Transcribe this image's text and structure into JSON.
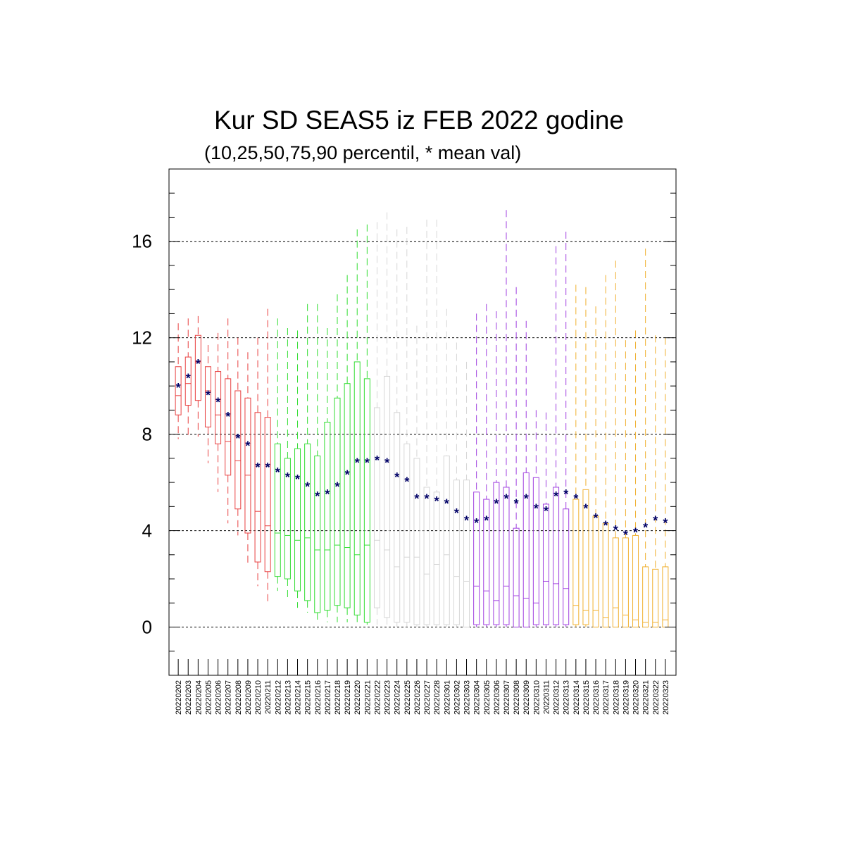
{
  "chart_data": {
    "type": "box",
    "title": "Kur SD SEAS5 iz FEB 2022 godine",
    "subtitle": "(10,25,50,75,90 percentil, * mean val)",
    "xlabel": "",
    "ylabel": "",
    "ylim": [
      -2,
      19
    ],
    "yticks": [
      0,
      4,
      8,
      12,
      16
    ],
    "grid": "horizontal dashed at major y ticks",
    "mean_marker": "*",
    "month_colors": {
      "202202": "#e84040",
      "202203a": "#33dd33",
      "202203b": "#d6d6d6",
      "202204": "#a040e0",
      "202205": "#f0b030"
    },
    "mean_color": "#000066",
    "categories": [
      "20220202",
      "20220203",
      "20220204",
      "20220205",
      "20220206",
      "20220207",
      "20220208",
      "20220209",
      "20220210",
      "20220211",
      "20220212",
      "20220213",
      "20220214",
      "20220215",
      "20220216",
      "20220217",
      "20220218",
      "20220219",
      "20220220",
      "20220221",
      "20220222",
      "20220223",
      "20220224",
      "20220225",
      "20220226",
      "20220227",
      "20220228",
      "20220301",
      "20220302",
      "20220303",
      "20220304",
      "20220305",
      "20220306",
      "20220307",
      "20220308",
      "20220309",
      "20220310",
      "20220311",
      "20220312",
      "20220313",
      "20220314",
      "20220315",
      "20220316",
      "20220317",
      "20220318",
      "20220319",
      "20220320",
      "20220321",
      "20220322",
      "20220323"
    ],
    "color_group": [
      "red",
      "red",
      "red",
      "red",
      "red",
      "red",
      "red",
      "red",
      "red",
      "red",
      "green",
      "green",
      "green",
      "green",
      "green",
      "green",
      "green",
      "green",
      "green",
      "green",
      "gray",
      "gray",
      "gray",
      "gray",
      "gray",
      "gray",
      "gray",
      "gray",
      "gray",
      "gray",
      "purple",
      "purple",
      "purple",
      "purple",
      "purple",
      "purple",
      "purple",
      "purple",
      "purple",
      "purple",
      "orange",
      "orange",
      "orange",
      "orange",
      "orange",
      "orange",
      "orange",
      "orange",
      "orange",
      "orange"
    ],
    "p10": [
      7.8,
      7.8,
      7.9,
      6.8,
      5.6,
      4.3,
      3.8,
      2.6,
      1.7,
      1.0,
      1.5,
      1.1,
      0.8,
      0.6,
      0.3,
      0.2,
      0.2,
      0.2,
      0.1,
      0.1,
      0.1,
      0.1,
      0.0,
      0.0,
      0.0,
      0.0,
      0.0,
      0.0,
      0.0,
      0.0,
      0.0,
      0.0,
      0.0,
      0.0,
      0.0,
      0.0,
      0.0,
      0.0,
      0.0,
      0.0,
      0.0,
      0.0,
      0.0,
      0.0,
      0.0,
      0.0,
      0.0,
      0.0,
      0.0,
      0.0
    ],
    "p25": [
      8.8,
      9.2,
      9.4,
      8.3,
      7.6,
      6.3,
      4.9,
      3.9,
      2.7,
      2.3,
      2.1,
      2.0,
      1.5,
      1.1,
      0.6,
      0.7,
      0.9,
      0.8,
      0.5,
      0.2,
      0.8,
      0.4,
      0.2,
      0.2,
      0.1,
      0.1,
      0.1,
      0.1,
      0.1,
      0.0,
      0.1,
      0.1,
      0.1,
      0.1,
      0.0,
      0.0,
      0.1,
      0.1,
      0.1,
      0.1,
      0.1,
      0.1,
      0.0,
      0.0,
      0.0,
      0.0,
      0.0,
      0.0,
      0.0,
      0.0
    ],
    "p50": [
      9.6,
      10.1,
      11.0,
      9.8,
      8.8,
      7.7,
      6.9,
      6.3,
      4.8,
      4.2,
      3.9,
      3.8,
      3.6,
      3.7,
      3.2,
      3.2,
      3.4,
      3.3,
      3.0,
      3.4,
      3.6,
      3.2,
      2.5,
      2.9,
      2.9,
      2.2,
      2.6,
      3.0,
      2.1,
      1.9,
      1.7,
      1.5,
      1.1,
      1.7,
      1.3,
      1.2,
      1.0,
      1.9,
      1.8,
      1.6,
      0.9,
      0.7,
      0.7,
      0.4,
      0.8,
      0.5,
      0.3,
      0.2,
      0.2,
      0.3
    ],
    "p75": [
      10.8,
      11.2,
      12.1,
      10.8,
      10.6,
      10.3,
      9.8,
      9.5,
      8.9,
      8.7,
      7.6,
      7.0,
      7.4,
      7.6,
      7.1,
      8.5,
      9.5,
      10.1,
      11.0,
      10.3,
      9.1,
      10.4,
      8.9,
      7.6,
      7.0,
      5.8,
      5.6,
      7.1,
      6.1,
      6.1,
      5.6,
      5.3,
      6.0,
      5.8,
      4.1,
      6.4,
      6.2,
      5.1,
      5.8,
      4.9,
      5.3,
      5.7,
      4.6,
      4.3,
      3.7,
      3.7,
      3.8,
      2.5,
      2.4,
      2.5
    ],
    "p90": [
      12.6,
      12.8,
      12.9,
      11.7,
      12.2,
      12.8,
      12.0,
      11.4,
      12.0,
      13.2,
      12.8,
      12.4,
      12.3,
      13.4,
      13.4,
      12.4,
      13.8,
      14.6,
      16.5,
      16.7,
      16.8,
      17.2,
      16.5,
      16.6,
      12.5,
      16.9,
      16.9,
      13.2,
      11.8,
      11.0,
      13.0,
      13.4,
      13.1,
      17.3,
      14.1,
      12.7,
      9.0,
      8.9,
      15.8,
      16.4,
      14.2,
      14.1,
      13.3,
      14.6,
      15.2,
      11.9,
      12.3,
      15.7,
      12.1,
      12.0
    ],
    "mean": [
      10.0,
      10.4,
      11.0,
      9.7,
      9.4,
      8.8,
      7.9,
      7.6,
      6.7,
      6.7,
      6.5,
      6.3,
      6.2,
      5.9,
      5.5,
      5.6,
      5.9,
      6.4,
      6.9,
      6.9,
      7.0,
      6.9,
      6.3,
      6.1,
      5.4,
      5.4,
      5.3,
      5.2,
      4.8,
      4.5,
      4.4,
      4.5,
      5.2,
      5.4,
      5.2,
      5.4,
      5.0,
      4.9,
      5.5,
      5.6,
      5.4,
      5.0,
      4.6,
      4.3,
      4.1,
      3.9,
      4.0,
      4.2,
      4.5,
      4.4
    ]
  },
  "colors": {
    "red": "#e84040",
    "green": "#33dd33",
    "gray": "#d6d6d6",
    "purple": "#a040e0",
    "orange": "#f0b030"
  }
}
